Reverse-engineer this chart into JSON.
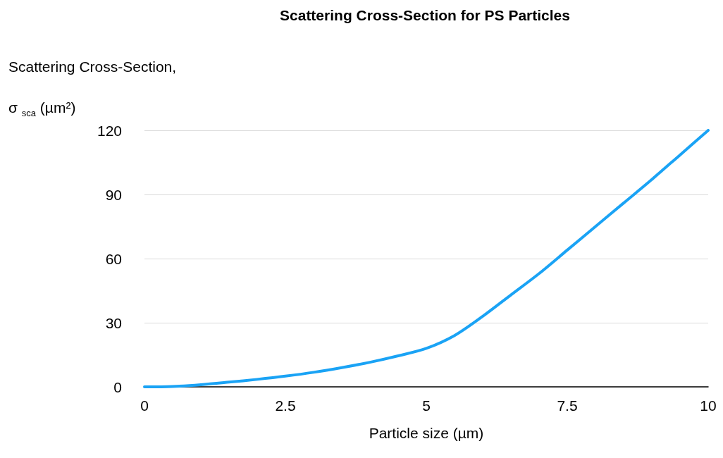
{
  "chart_data": {
    "type": "line",
    "title": "Scattering Cross-Section for PS Particles",
    "ylabel": "Scattering Cross-Section,\nσ $_{sca}$ (µm²)",
    "xlabel": "Particle size (µm)",
    "x": [
      0,
      0.5,
      1,
      1.5,
      2,
      2.5,
      3,
      3.5,
      4,
      4.5,
      5,
      5.5,
      6,
      6.5,
      7,
      7.5,
      8,
      8.5,
      9,
      9.5,
      10
    ],
    "series": [
      {
        "color": "#1aa3f5",
        "values": [
          0,
          0.2,
          1,
          2.2,
          3.5,
          5,
          6.8,
          9,
          11.5,
          14.5,
          18,
          24,
          33,
          43,
          53,
          64,
          75,
          86,
          97,
          108.5,
          120
        ]
      }
    ],
    "xlim": [
      0,
      10
    ],
    "xticks": [
      0,
      2.5,
      5,
      7.5,
      10
    ],
    "ylim": [
      0,
      120
    ],
    "yticks": [
      0,
      30,
      60,
      90,
      120
    ],
    "grid": "y",
    "marker": "none",
    "line_style": "solid"
  }
}
